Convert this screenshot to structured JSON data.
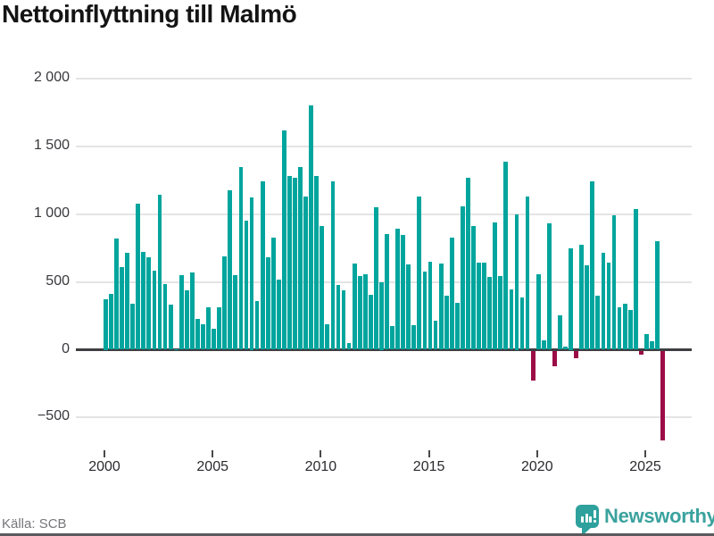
{
  "chart_data": {
    "type": "bar",
    "title": "Nettoinflyttning till Malmö",
    "period": "quarterly",
    "start_period": "2000Q1",
    "end_period": "2025Q4",
    "x_tick_labels": [
      "2000",
      "2005",
      "2010",
      "2015",
      "2020",
      "2025"
    ],
    "y_tick_labels": [
      "2 000",
      "1 500",
      "1 000",
      "500",
      "0",
      "−500"
    ],
    "y_tick_values": [
      2000,
      1500,
      1000,
      500,
      0,
      -500
    ],
    "ylim": [
      -750,
      2050
    ],
    "grid": "horizontal",
    "legend": "none",
    "positive_color": "#00a59d",
    "negative_color": "#9c0d47",
    "values": [
      375,
      413,
      823,
      610,
      713,
      340,
      1075,
      719,
      682,
      583,
      1145,
      482,
      331,
      5,
      548,
      440,
      568,
      225,
      190,
      315,
      155,
      310,
      690,
      1175,
      550,
      1350,
      950,
      1125,
      360,
      1240,
      685,
      825,
      520,
      1620,
      1280,
      1270,
      1350,
      1130,
      1800,
      1285,
      915,
      185,
      1240,
      480,
      435,
      50,
      635,
      545,
      560,
      405,
      1050,
      500,
      855,
      175,
      890,
      845,
      630,
      180,
      1130,
      575,
      650,
      215,
      635,
      400,
      830,
      345,
      1060,
      1270,
      915,
      640,
      640,
      535,
      940,
      545,
      1390,
      445,
      1000,
      385,
      1130,
      -215,
      560,
      70,
      930,
      -115,
      255,
      25,
      750,
      -55,
      775,
      620,
      1245,
      400,
      715,
      645,
      990,
      315,
      340,
      290,
      1040,
      -25,
      115,
      65,
      800,
      -660
    ]
  },
  "footer": {
    "source": "Källa: SCB",
    "logo_text": "Newsworthy"
  }
}
